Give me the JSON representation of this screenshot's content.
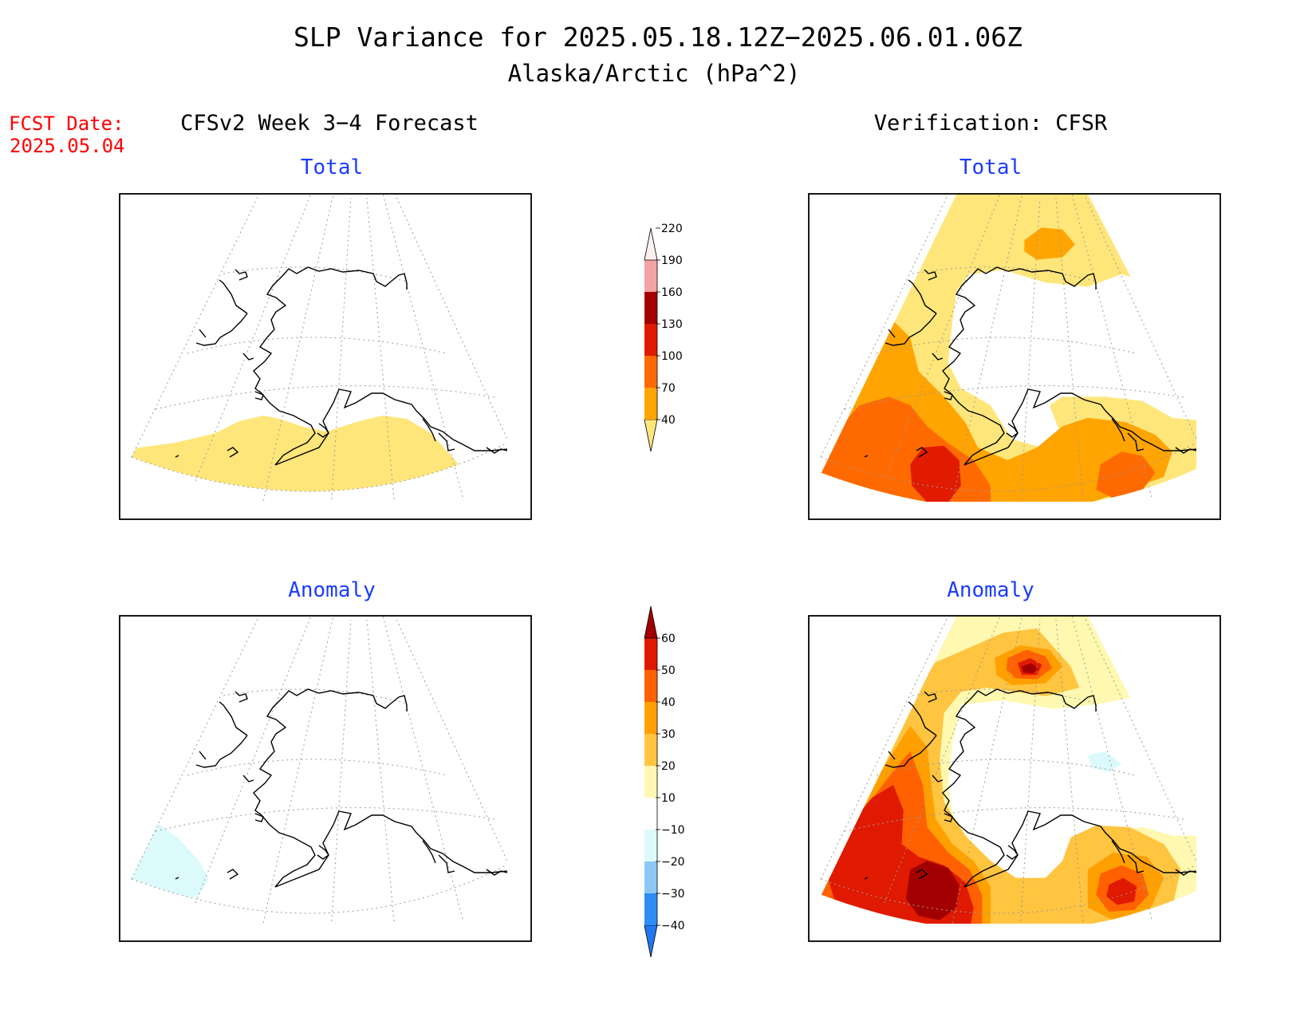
{
  "header": {
    "title": "SLP Variance for 2025.05.18.12Z−2025.06.01.06Z",
    "subtitle": "Alaska/Arctic (hPa^2)"
  },
  "fcst_date": {
    "label": "FCST Date:",
    "value": "2025.05.04"
  },
  "columns": {
    "left": "CFSv2 Week 3−4 Forecast",
    "right": "Verification: CFSR"
  },
  "panels": {
    "forecast_total": {
      "title": "Total"
    },
    "verification_total": {
      "title": "Total"
    },
    "forecast_anomaly": {
      "title": "Anomaly"
    },
    "verification_anomaly": {
      "title": "Anomaly"
    }
  },
  "colorbars": {
    "total": {
      "labels": [
        "40",
        "70",
        "100",
        "130",
        "160",
        "190",
        "220"
      ],
      "colors": [
        "#ffe67a",
        "#ffa400",
        "#ff6a00",
        "#e11b00",
        "#a50000",
        "#f2a3a3",
        "#fff0f0"
      ]
    },
    "anomaly": {
      "labels": [
        "−40",
        "−30",
        "−20",
        "−10",
        "10",
        "20",
        "30",
        "40",
        "50",
        "60"
      ],
      "colors": [
        "#1f78f0",
        "#2d8df5",
        "#8cc8f5",
        "#dcfafc",
        "#ffffff",
        "#fff8b0",
        "#ffc440",
        "#ffa000",
        "#ff6000",
        "#e01a00",
        "#a20000"
      ]
    }
  },
  "legend_colors": {
    "title_text": "#000000",
    "panel_title": "#1a3cff",
    "fcst_date": "#ff0000"
  }
}
